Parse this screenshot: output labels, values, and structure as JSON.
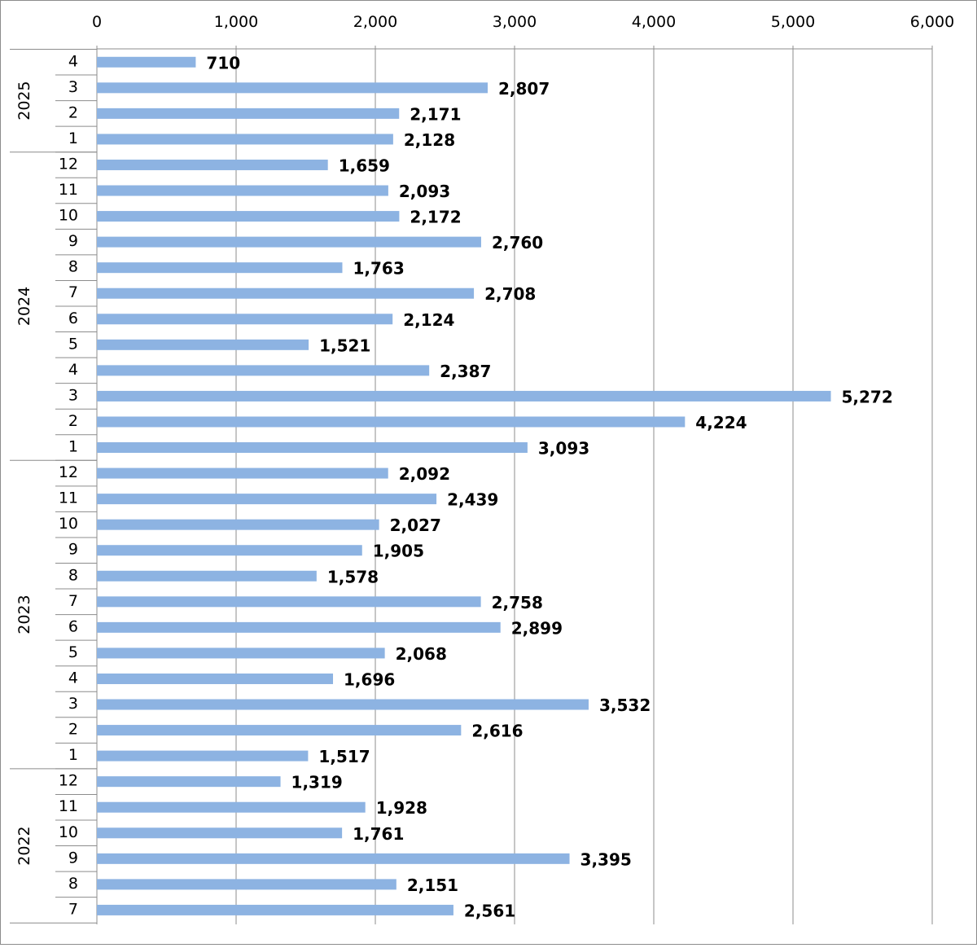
{
  "chart_data": {
    "type": "bar",
    "orientation": "horizontal",
    "title": "",
    "xlabel": "",
    "ylabel": "",
    "xlim": [
      0,
      6000
    ],
    "x_ticks": [
      0,
      1000,
      2000,
      3000,
      4000,
      5000,
      6000
    ],
    "x_tick_labels": [
      "0",
      "1,000",
      "2,000",
      "3,000",
      "4,000",
      "5,000",
      "6,000"
    ],
    "x_axis_position": "top",
    "grid": "vertical",
    "legend": "none",
    "bar_color": "#8DB3E2",
    "groups": [
      {
        "year": "2025",
        "months": [
          "4",
          "3",
          "2",
          "1"
        ]
      },
      {
        "year": "2024",
        "months": [
          "12",
          "11",
          "10",
          "9",
          "8",
          "7",
          "6",
          "5",
          "4",
          "3",
          "2",
          "1"
        ]
      },
      {
        "year": "2023",
        "months": [
          "12",
          "11",
          "10",
          "9",
          "8",
          "7",
          "6",
          "5",
          "4",
          "3",
          "2",
          "1"
        ]
      },
      {
        "year": "2022",
        "months": [
          "12",
          "11",
          "10",
          "9",
          "8",
          "7"
        ]
      }
    ],
    "values": [
      710,
      2807,
      2171,
      2128,
      1659,
      2093,
      2172,
      2760,
      1763,
      2708,
      2124,
      1521,
      2387,
      5272,
      4224,
      3093,
      2092,
      2439,
      2027,
      1905,
      1578,
      2758,
      2899,
      2068,
      1696,
      3532,
      2616,
      1517,
      1319,
      1928,
      1761,
      3395,
      2151,
      2561
    ],
    "value_labels": [
      "710",
      "2,807",
      "2,171",
      "2,128",
      "1,659",
      "2,093",
      "2,172",
      "2,760",
      "1,763",
      "2,708",
      "2,124",
      "1,521",
      "2,387",
      "5,272",
      "4,224",
      "3,093",
      "2,092",
      "2,439",
      "2,027",
      "1,905",
      "1,578",
      "2,758",
      "2,899",
      "2,068",
      "1,696",
      "3,532",
      "2,616",
      "1,517",
      "1,319",
      "1,928",
      "1,761",
      "3,395",
      "2,151",
      "2,561"
    ]
  }
}
